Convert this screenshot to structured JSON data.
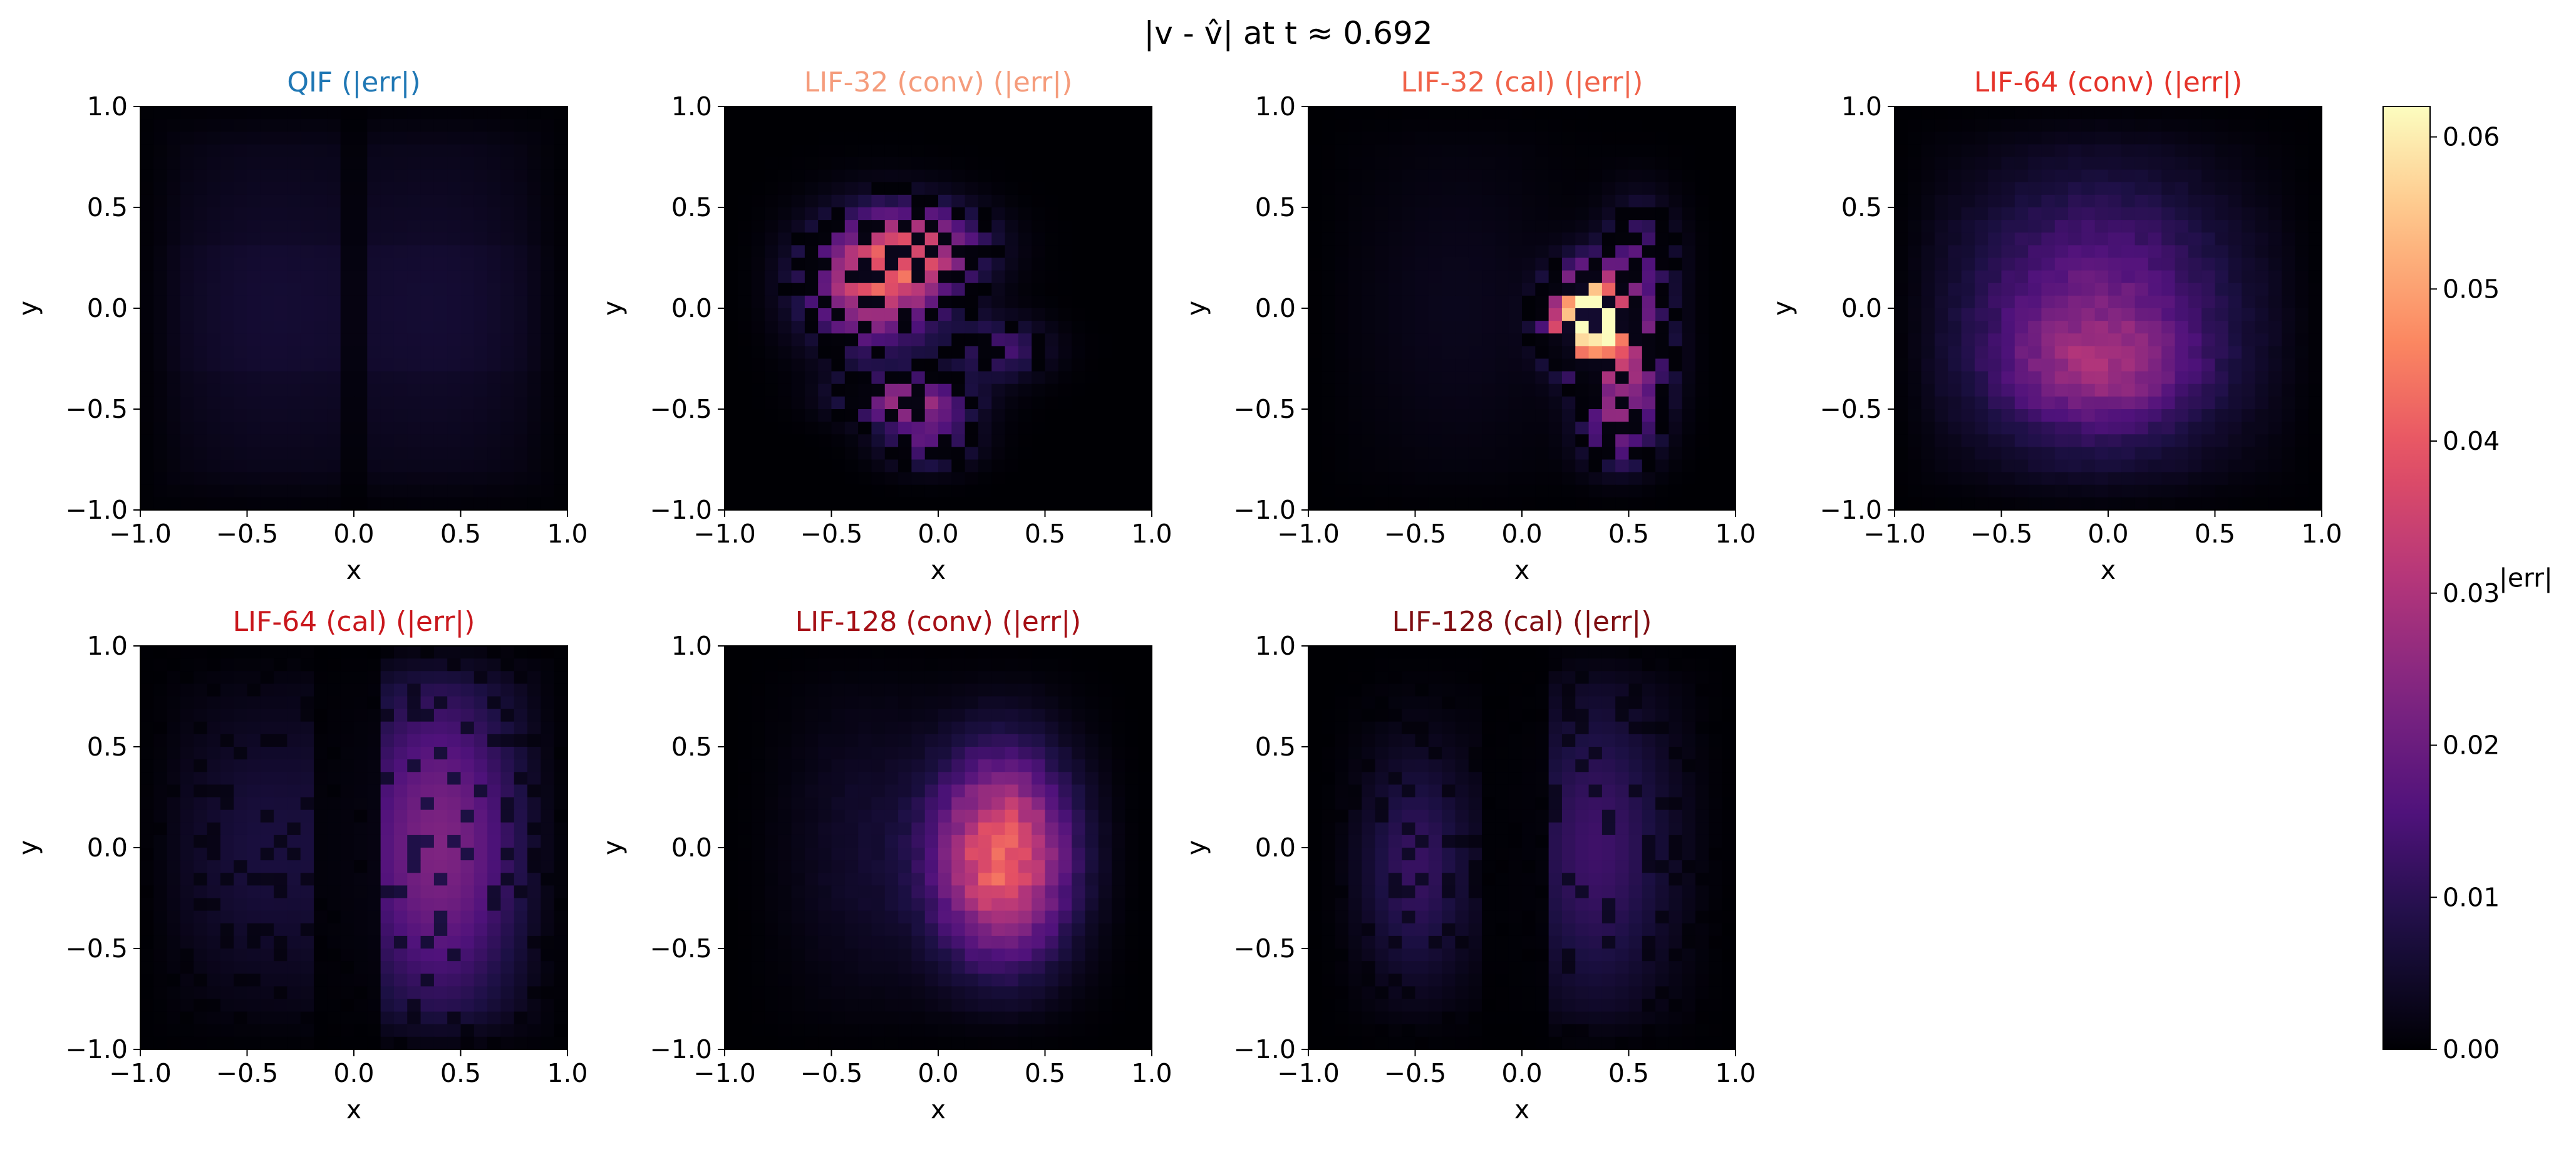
{
  "chart_data": {
    "type": "heatmap",
    "title": "|v - v̂| at t ≈ 0.692",
    "colorbar": {
      "label": "|err|",
      "colormap": "magma",
      "range": [
        0.0,
        0.062
      ],
      "ticks": [
        0.0,
        0.01,
        0.02,
        0.03,
        0.04,
        0.05,
        0.06
      ],
      "tick_labels": [
        "0.00",
        "0.01",
        "0.02",
        "0.03",
        "0.04",
        "0.05",
        "0.06"
      ]
    },
    "grid": false,
    "grid_resolution": 32,
    "panels": [
      {
        "title": "QIF  (|err|)",
        "title_color": "#1f77b4",
        "xlabel": "x",
        "ylabel": "y",
        "xlim": [
          -1,
          1
        ],
        "ylim": [
          -1,
          1
        ],
        "x_ticks": [
          "−1.0",
          "−0.5",
          "0.0",
          "0.5",
          "1.0"
        ],
        "y_ticks": [
          "−1.0",
          "−0.5",
          "0.0",
          "0.5",
          "1.0"
        ],
        "pattern": "qif",
        "blobs": [
          {
            "x": -0.45,
            "y": 0.0,
            "sx": 0.38,
            "sy": 0.75,
            "amp": 0.0055
          },
          {
            "x": 0.45,
            "y": 0.0,
            "sx": 0.38,
            "sy": 0.75,
            "amp": 0.0055
          }
        ]
      },
      {
        "title": "LIF-32 (conv)  (|err|)",
        "title_color": "#f59c7c",
        "xlabel": "x",
        "ylabel": "y",
        "xlim": [
          -1,
          1
        ],
        "ylim": [
          -1,
          1
        ],
        "x_ticks": [
          "−1.0",
          "−0.5",
          "0.0",
          "0.5",
          "1.0"
        ],
        "y_ticks": [
          "−1.0",
          "−0.5",
          "0.0",
          "0.5",
          "1.0"
        ],
        "pattern": "speckle",
        "blobs": [
          {
            "x": -0.3,
            "y": 0.12,
            "sx": 0.22,
            "sy": 0.22,
            "amp": 0.03
          },
          {
            "x": -0.05,
            "y": 0.3,
            "sx": 0.2,
            "sy": 0.14,
            "amp": 0.02
          },
          {
            "x": -0.15,
            "y": -0.45,
            "sx": 0.2,
            "sy": 0.08,
            "amp": 0.022
          },
          {
            "x": 0.3,
            "y": -0.2,
            "sx": 0.15,
            "sy": 0.1,
            "amp": 0.012
          },
          {
            "x": -0.05,
            "y": -0.65,
            "sx": 0.15,
            "sy": 0.1,
            "amp": 0.015
          }
        ]
      },
      {
        "title": "LIF-32 (cal)  (|err|)",
        "title_color": "#f0634a",
        "xlabel": "x",
        "ylabel": "y",
        "xlim": [
          -1,
          1
        ],
        "ylim": [
          -1,
          1
        ],
        "x_ticks": [
          "−1.0",
          "−0.5",
          "0.0",
          "0.5",
          "1.0"
        ],
        "y_ticks": [
          "−1.0",
          "−0.5",
          "0.0",
          "0.5",
          "1.0"
        ],
        "pattern": "speckle",
        "blobs": [
          {
            "x": 0.3,
            "y": -0.05,
            "sx": 0.11,
            "sy": 0.15,
            "amp": 0.065
          },
          {
            "x": 0.5,
            "y": -0.25,
            "sx": 0.13,
            "sy": 0.22,
            "amp": 0.022
          },
          {
            "x": 0.55,
            "y": 0.25,
            "sx": 0.12,
            "sy": 0.2,
            "amp": 0.012
          },
          {
            "x": 0.45,
            "y": -0.6,
            "sx": 0.12,
            "sy": 0.15,
            "amp": 0.014
          },
          {
            "x": -0.3,
            "y": 0.0,
            "sx": 0.35,
            "sy": 0.6,
            "amp": 0.003
          }
        ]
      },
      {
        "title": "LIF-64 (conv)  (|err|)",
        "title_color": "#e5332a",
        "xlabel": "x",
        "ylabel": "y",
        "xlim": [
          -1,
          1
        ],
        "ylim": [
          -1,
          1
        ],
        "x_ticks": [
          "−1.0",
          "−0.5",
          "0.0",
          "0.5",
          "1.0"
        ],
        "y_ticks": [
          "−1.0",
          "−0.5",
          "0.0",
          "0.5",
          "1.0"
        ],
        "pattern": "smooth",
        "blobs": [
          {
            "x": -0.05,
            "y": -0.05,
            "sx": 0.45,
            "sy": 0.48,
            "amp": 0.02
          },
          {
            "x": -0.05,
            "y": -0.3,
            "sx": 0.3,
            "sy": 0.18,
            "amp": 0.012
          }
        ]
      },
      {
        "title": "LIF-64 (cal)  (|err|)",
        "title_color": "#c9171c",
        "xlabel": "x",
        "ylabel": "y",
        "xlim": [
          -1,
          1
        ],
        "ylim": [
          -1,
          1
        ],
        "x_ticks": [
          "−1.0",
          "−0.5",
          "0.0",
          "0.5",
          "1.0"
        ],
        "y_ticks": [
          "−1.0",
          "−0.5",
          "0.0",
          "0.5",
          "1.0"
        ],
        "pattern": "split",
        "blobs": [
          {
            "x": 0.4,
            "y": 0.0,
            "sx": 0.28,
            "sy": 0.6,
            "amp": 0.023
          },
          {
            "x": -0.45,
            "y": 0.0,
            "sx": 0.3,
            "sy": 0.5,
            "amp": 0.007
          }
        ]
      },
      {
        "title": "LIF-128 (conv)  (|err|)",
        "title_color": "#a50f15",
        "xlabel": "x",
        "ylabel": "y",
        "xlim": [
          -1,
          1
        ],
        "ylim": [
          -1,
          1
        ],
        "x_ticks": [
          "−1.0",
          "−0.5",
          "0.0",
          "0.5",
          "1.0"
        ],
        "y_ticks": [
          "−1.0",
          "−0.5",
          "0.0",
          "0.5",
          "1.0"
        ],
        "pattern": "smooth",
        "blobs": [
          {
            "x": 0.3,
            "y": -0.05,
            "sx": 0.22,
            "sy": 0.35,
            "amp": 0.042
          },
          {
            "x": -0.35,
            "y": 0.0,
            "sx": 0.25,
            "sy": 0.5,
            "amp": 0.005
          }
        ]
      },
      {
        "title": "LIF-128 (cal)  (|err|)",
        "title_color": "#7f0e12",
        "xlabel": "x",
        "ylabel": "y",
        "xlim": [
          -1,
          1
        ],
        "ylim": [
          -1,
          1
        ],
        "x_ticks": [
          "−1.0",
          "−0.5",
          "0.0",
          "0.5",
          "1.0"
        ],
        "y_ticks": [
          "−1.0",
          "−0.5",
          "0.0",
          "0.5",
          "1.0"
        ],
        "pattern": "split",
        "blobs": [
          {
            "x": 0.35,
            "y": 0.0,
            "sx": 0.25,
            "sy": 0.55,
            "amp": 0.013
          },
          {
            "x": -0.5,
            "y": -0.1,
            "sx": 0.18,
            "sy": 0.4,
            "amp": 0.012
          }
        ]
      }
    ]
  }
}
